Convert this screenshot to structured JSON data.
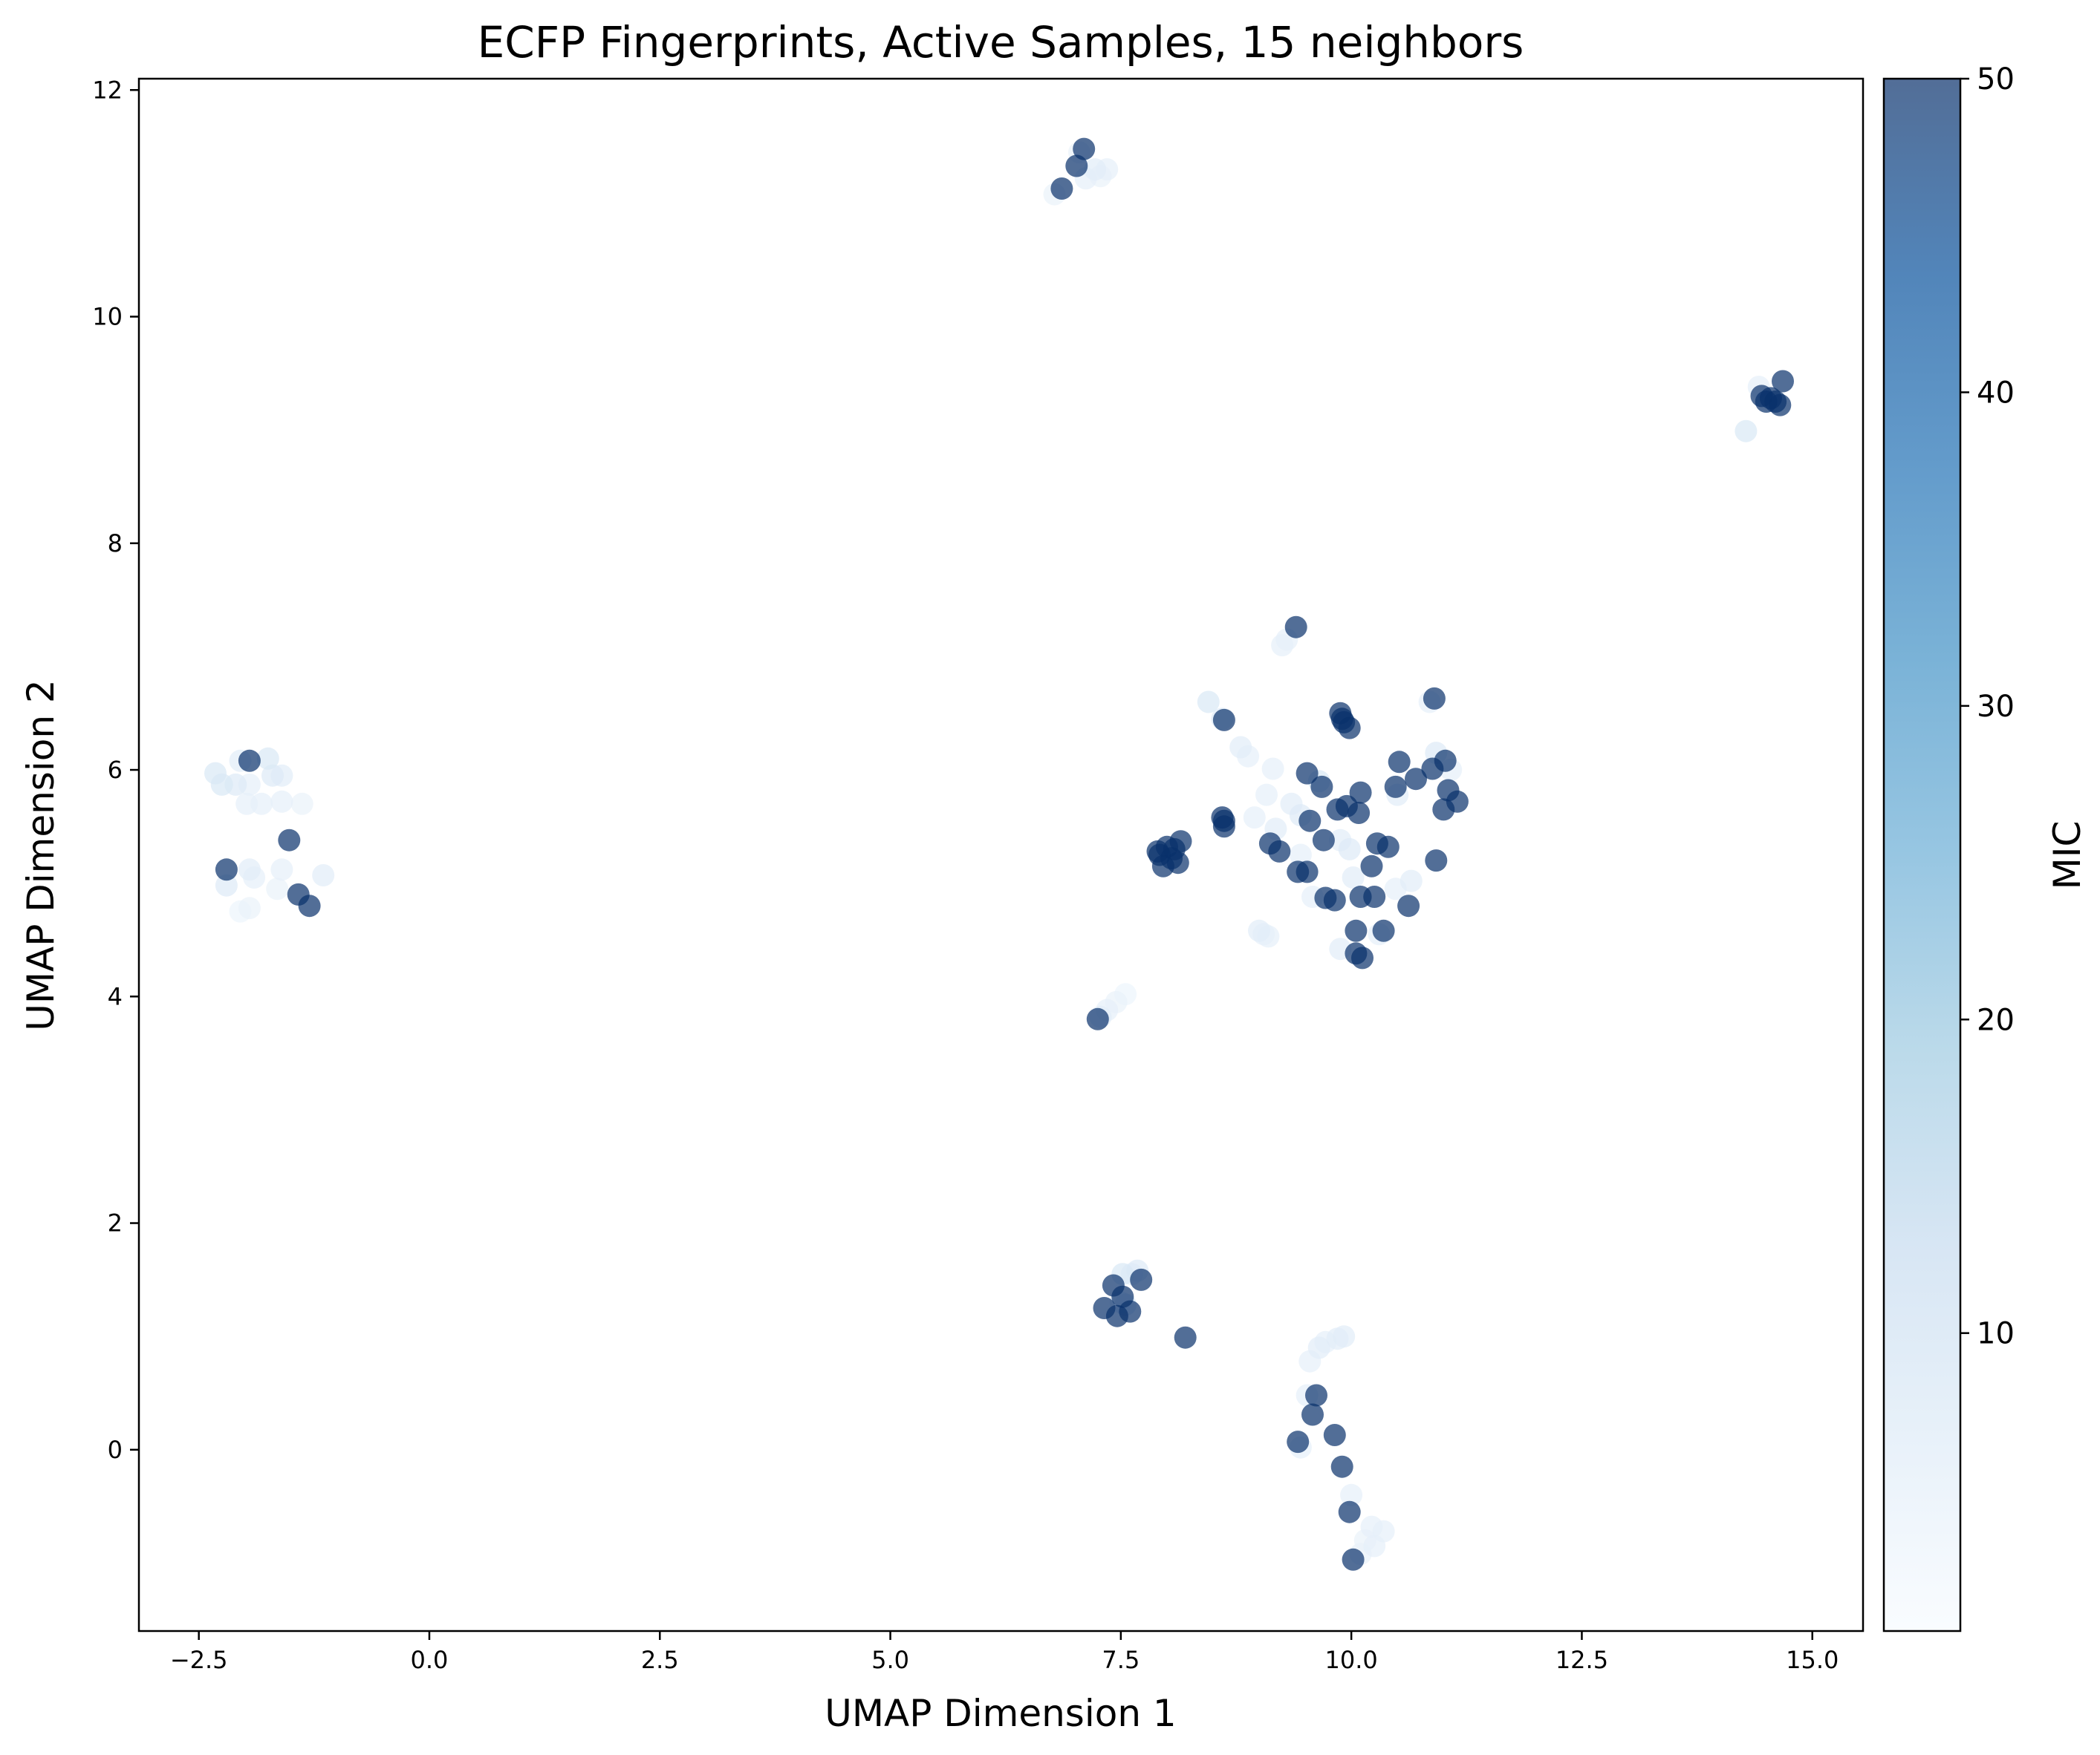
{
  "chart_data": {
    "type": "scatter",
    "title": "ECFP Fingerprints, Active Samples, 15 neighbors",
    "xlabel": "UMAP Dimension 1",
    "ylabel": "UMAP Dimension 2",
    "xlim": [
      -3.15,
      15.55
    ],
    "ylim": [
      -1.6,
      12.1
    ],
    "xticks": [
      -2.5,
      0.0,
      2.5,
      5.0,
      7.5,
      10.0,
      12.5,
      15.0
    ],
    "xtick_labels": [
      "−2.5",
      "0.0",
      "2.5",
      "5.0",
      "7.5",
      "10.0",
      "12.5",
      "15.0"
    ],
    "yticks": [
      0,
      2,
      4,
      6,
      8,
      10,
      12
    ],
    "ytick_labels": [
      "0",
      "2",
      "4",
      "6",
      "8",
      "10",
      "12"
    ],
    "grid": false,
    "colormap": "Blues",
    "marker_alpha": 0.7,
    "colorbar": {
      "label": "MIC",
      "range": [
        0.5,
        50
      ],
      "ticks": [
        10,
        20,
        30,
        40,
        50
      ],
      "tick_labels": [
        "10",
        "20",
        "30",
        "40",
        "50"
      ]
    },
    "points": [
      {
        "x": -2.32,
        "y": 5.97,
        "c": 8
      },
      {
        "x": -2.25,
        "y": 5.87,
        "c": 8
      },
      {
        "x": -2.1,
        "y": 5.87,
        "c": 7
      },
      {
        "x": -2.05,
        "y": 6.08,
        "c": 6
      },
      {
        "x": -1.95,
        "y": 6.08,
        "c": 50
      },
      {
        "x": -1.98,
        "y": 5.7,
        "c": 5
      },
      {
        "x": -1.82,
        "y": 5.7,
        "c": 5
      },
      {
        "x": -1.75,
        "y": 6.1,
        "c": 8
      },
      {
        "x": -1.7,
        "y": 5.95,
        "c": 7
      },
      {
        "x": -1.6,
        "y": 5.95,
        "c": 6
      },
      {
        "x": -1.6,
        "y": 5.72,
        "c": 5
      },
      {
        "x": -1.38,
        "y": 5.7,
        "c": 4
      },
      {
        "x": -1.95,
        "y": 5.87,
        "c": 5
      },
      {
        "x": -1.52,
        "y": 5.38,
        "c": 50
      },
      {
        "x": -2.2,
        "y": 5.12,
        "c": 50
      },
      {
        "x": -2.2,
        "y": 4.98,
        "c": 7
      },
      {
        "x": -1.95,
        "y": 5.12,
        "c": 6
      },
      {
        "x": -1.9,
        "y": 5.05,
        "c": 5
      },
      {
        "x": -2.05,
        "y": 4.75,
        "c": 3
      },
      {
        "x": -1.95,
        "y": 4.78,
        "c": 4
      },
      {
        "x": -1.6,
        "y": 5.12,
        "c": 5
      },
      {
        "x": -1.65,
        "y": 4.95,
        "c": 4
      },
      {
        "x": -1.15,
        "y": 5.07,
        "c": 6
      },
      {
        "x": -1.42,
        "y": 4.9,
        "c": 50
      },
      {
        "x": -1.3,
        "y": 4.8,
        "c": 50
      },
      {
        "x": 6.78,
        "y": 11.08,
        "c": 4
      },
      {
        "x": 6.86,
        "y": 11.13,
        "c": 50
      },
      {
        "x": 7.02,
        "y": 11.33,
        "c": 50
      },
      {
        "x": 7.05,
        "y": 11.45,
        "c": 4
      },
      {
        "x": 7.1,
        "y": 11.48,
        "c": 50
      },
      {
        "x": 7.12,
        "y": 11.22,
        "c": 5
      },
      {
        "x": 7.22,
        "y": 11.3,
        "c": 6
      },
      {
        "x": 7.28,
        "y": 11.24,
        "c": 4
      },
      {
        "x": 7.35,
        "y": 11.3,
        "c": 5
      },
      {
        "x": 14.28,
        "y": 8.99,
        "c": 8
      },
      {
        "x": 14.45,
        "y": 9.3,
        "c": 50
      },
      {
        "x": 14.5,
        "y": 9.25,
        "c": 50
      },
      {
        "x": 14.55,
        "y": 9.28,
        "c": 50
      },
      {
        "x": 14.6,
        "y": 9.25,
        "c": 50
      },
      {
        "x": 14.65,
        "y": 9.22,
        "c": 50
      },
      {
        "x": 14.68,
        "y": 9.43,
        "c": 50
      },
      {
        "x": 14.42,
        "y": 9.38,
        "c": 5
      },
      {
        "x": 9.4,
        "y": 7.26,
        "c": 50
      },
      {
        "x": 9.3,
        "y": 7.15,
        "c": 5
      },
      {
        "x": 9.25,
        "y": 7.1,
        "c": 5
      },
      {
        "x": 8.45,
        "y": 6.6,
        "c": 8
      },
      {
        "x": 8.6,
        "y": 6.45,
        "c": 7
      },
      {
        "x": 8.62,
        "y": 6.44,
        "c": 50
      },
      {
        "x": 8.8,
        "y": 6.2,
        "c": 6
      },
      {
        "x": 8.88,
        "y": 6.12,
        "c": 5
      },
      {
        "x": 9.15,
        "y": 6.01,
        "c": 5
      },
      {
        "x": 9.08,
        "y": 5.78,
        "c": 5
      },
      {
        "x": 8.95,
        "y": 5.58,
        "c": 5
      },
      {
        "x": 8.62,
        "y": 5.55,
        "c": 50
      },
      {
        "x": 8.6,
        "y": 5.58,
        "c": 50
      },
      {
        "x": 8.62,
        "y": 5.5,
        "c": 50
      },
      {
        "x": 8.15,
        "y": 5.37,
        "c": 50
      },
      {
        "x": 8.08,
        "y": 5.3,
        "c": 50
      },
      {
        "x": 8.0,
        "y": 5.32,
        "c": 50
      },
      {
        "x": 7.92,
        "y": 5.25,
        "c": 50
      },
      {
        "x": 7.96,
        "y": 5.15,
        "c": 50
      },
      {
        "x": 8.05,
        "y": 5.22,
        "c": 50
      },
      {
        "x": 8.12,
        "y": 5.18,
        "c": 50
      },
      {
        "x": 7.9,
        "y": 5.28,
        "c": 50
      },
      {
        "x": 9.12,
        "y": 5.35,
        "c": 50
      },
      {
        "x": 9.22,
        "y": 5.28,
        "c": 50
      },
      {
        "x": 9.18,
        "y": 5.48,
        "c": 6
      },
      {
        "x": 9.35,
        "y": 5.7,
        "c": 6
      },
      {
        "x": 9.45,
        "y": 5.6,
        "c": 7
      },
      {
        "x": 9.52,
        "y": 5.97,
        "c": 50
      },
      {
        "x": 9.55,
        "y": 5.55,
        "c": 50
      },
      {
        "x": 9.68,
        "y": 5.85,
        "c": 50
      },
      {
        "x": 9.65,
        "y": 5.9,
        "c": 8
      },
      {
        "x": 9.85,
        "y": 5.65,
        "c": 50
      },
      {
        "x": 9.95,
        "y": 5.68,
        "c": 50
      },
      {
        "x": 10.1,
        "y": 5.8,
        "c": 50
      },
      {
        "x": 10.08,
        "y": 5.62,
        "c": 50
      },
      {
        "x": 9.88,
        "y": 6.5,
        "c": 50
      },
      {
        "x": 9.9,
        "y": 6.45,
        "c": 50
      },
      {
        "x": 9.92,
        "y": 6.42,
        "c": 50
      },
      {
        "x": 9.98,
        "y": 6.37,
        "c": 50
      },
      {
        "x": 9.7,
        "y": 5.38,
        "c": 50
      },
      {
        "x": 9.88,
        "y": 5.38,
        "c": 6
      },
      {
        "x": 9.98,
        "y": 5.3,
        "c": 7
      },
      {
        "x": 9.42,
        "y": 5.1,
        "c": 50
      },
      {
        "x": 9.52,
        "y": 5.1,
        "c": 50
      },
      {
        "x": 9.45,
        "y": 5.25,
        "c": 5
      },
      {
        "x": 9.58,
        "y": 4.88,
        "c": 5
      },
      {
        "x": 9.72,
        "y": 4.87,
        "c": 50
      },
      {
        "x": 9.82,
        "y": 4.85,
        "c": 50
      },
      {
        "x": 10.02,
        "y": 5.05,
        "c": 6
      },
      {
        "x": 10.1,
        "y": 4.88,
        "c": 50
      },
      {
        "x": 10.22,
        "y": 5.15,
        "c": 50
      },
      {
        "x": 10.25,
        "y": 4.88,
        "c": 50
      },
      {
        "x": 10.28,
        "y": 5.35,
        "c": 50
      },
      {
        "x": 10.4,
        "y": 5.32,
        "c": 50
      },
      {
        "x": 10.48,
        "y": 5.85,
        "c": 50
      },
      {
        "x": 10.52,
        "y": 6.07,
        "c": 50
      },
      {
        "x": 10.5,
        "y": 5.78,
        "c": 6
      },
      {
        "x": 10.7,
        "y": 5.92,
        "c": 50
      },
      {
        "x": 10.88,
        "y": 6.01,
        "c": 50
      },
      {
        "x": 10.9,
        "y": 6.63,
        "c": 50
      },
      {
        "x": 10.85,
        "y": 6.6,
        "c": 5
      },
      {
        "x": 10.92,
        "y": 6.15,
        "c": 7
      },
      {
        "x": 11.02,
        "y": 6.08,
        "c": 50
      },
      {
        "x": 11.08,
        "y": 6.0,
        "c": 5
      },
      {
        "x": 11.05,
        "y": 5.82,
        "c": 50
      },
      {
        "x": 11.15,
        "y": 5.72,
        "c": 50
      },
      {
        "x": 11.0,
        "y": 5.65,
        "c": 50
      },
      {
        "x": 10.92,
        "y": 5.2,
        "c": 50
      },
      {
        "x": 10.62,
        "y": 4.8,
        "c": 50
      },
      {
        "x": 10.65,
        "y": 5.02,
        "c": 6
      },
      {
        "x": 10.48,
        "y": 4.95,
        "c": 5
      },
      {
        "x": 10.35,
        "y": 4.58,
        "c": 50
      },
      {
        "x": 10.3,
        "y": 4.55,
        "c": 5
      },
      {
        "x": 10.05,
        "y": 4.58,
        "c": 50
      },
      {
        "x": 10.05,
        "y": 4.38,
        "c": 50
      },
      {
        "x": 10.12,
        "y": 4.34,
        "c": 50
      },
      {
        "x": 9.88,
        "y": 4.42,
        "c": 6
      },
      {
        "x": 9.0,
        "y": 4.58,
        "c": 6
      },
      {
        "x": 9.05,
        "y": 4.55,
        "c": 5
      },
      {
        "x": 9.1,
        "y": 4.53,
        "c": 5
      },
      {
        "x": 7.25,
        "y": 3.8,
        "c": 50
      },
      {
        "x": 7.28,
        "y": 3.82,
        "c": 6
      },
      {
        "x": 7.35,
        "y": 3.88,
        "c": 5
      },
      {
        "x": 7.45,
        "y": 3.95,
        "c": 4
      },
      {
        "x": 7.55,
        "y": 4.02,
        "c": 3
      },
      {
        "x": 7.32,
        "y": 1.25,
        "c": 50
      },
      {
        "x": 7.42,
        "y": 1.45,
        "c": 50
      },
      {
        "x": 7.46,
        "y": 1.18,
        "c": 50
      },
      {
        "x": 7.52,
        "y": 1.35,
        "c": 50
      },
      {
        "x": 7.55,
        "y": 1.28,
        "c": 8
      },
      {
        "x": 7.6,
        "y": 1.22,
        "c": 50
      },
      {
        "x": 7.52,
        "y": 1.55,
        "c": 8
      },
      {
        "x": 7.62,
        "y": 1.55,
        "c": 6
      },
      {
        "x": 7.68,
        "y": 1.58,
        "c": 7
      },
      {
        "x": 7.72,
        "y": 1.5,
        "c": 50
      },
      {
        "x": 7.5,
        "y": 1.3,
        "c": 5
      },
      {
        "x": 8.2,
        "y": 0.99,
        "c": 50
      },
      {
        "x": 9.55,
        "y": 0.78,
        "c": 5
      },
      {
        "x": 9.65,
        "y": 0.9,
        "c": 6
      },
      {
        "x": 9.72,
        "y": 0.95,
        "c": 5
      },
      {
        "x": 9.85,
        "y": 0.98,
        "c": 6
      },
      {
        "x": 9.92,
        "y": 1.0,
        "c": 6
      },
      {
        "x": 9.62,
        "y": 0.48,
        "c": 50
      },
      {
        "x": 9.52,
        "y": 0.48,
        "c": 5
      },
      {
        "x": 9.58,
        "y": 0.31,
        "c": 50
      },
      {
        "x": 9.82,
        "y": 0.13,
        "c": 50
      },
      {
        "x": 9.42,
        "y": 0.07,
        "c": 50
      },
      {
        "x": 9.45,
        "y": 0.02,
        "c": 5
      },
      {
        "x": 9.9,
        "y": -0.15,
        "c": 50
      },
      {
        "x": 10.0,
        "y": -0.4,
        "c": 5
      },
      {
        "x": 9.98,
        "y": -0.55,
        "c": 50
      },
      {
        "x": 10.22,
        "y": -0.68,
        "c": 5
      },
      {
        "x": 10.35,
        "y": -0.72,
        "c": 5
      },
      {
        "x": 10.25,
        "y": -0.85,
        "c": 5
      },
      {
        "x": 10.1,
        "y": -0.92,
        "c": 4
      },
      {
        "x": 10.02,
        "y": -0.97,
        "c": 50
      },
      {
        "x": 10.15,
        "y": -0.8,
        "c": 4
      }
    ]
  }
}
